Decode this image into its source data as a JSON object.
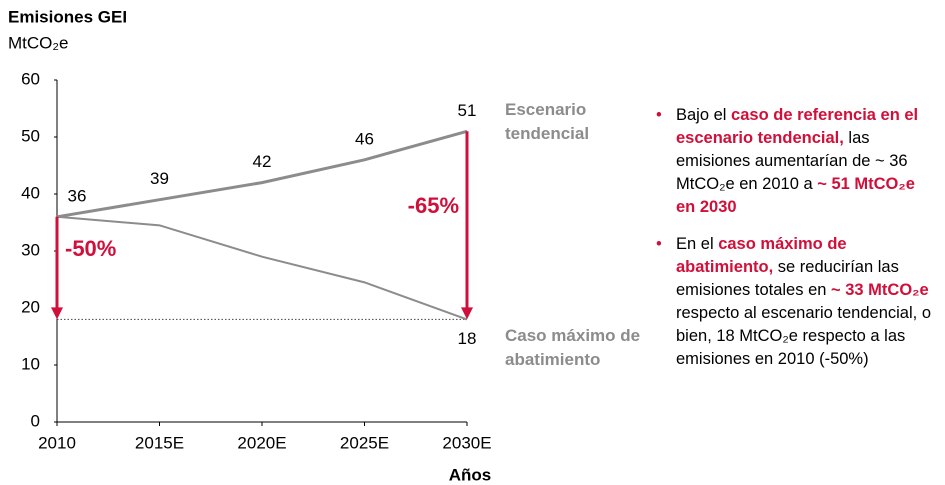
{
  "chart_data": {
    "type": "line",
    "title": "Emisiones GEI",
    "subtitle": "MtCO₂e",
    "x_label": "Años",
    "categories": [
      "2010",
      "2015E",
      "2020E",
      "2025E",
      "2030E"
    ],
    "series": [
      {
        "name": "Escenario tendencial",
        "color": "#8c8c8c",
        "values": [
          36,
          39,
          42,
          46,
          51
        ]
      },
      {
        "name": "Caso máximo de abatimiento",
        "color": "#8c8c8c",
        "values": [
          36,
          34.5,
          29,
          24.5,
          18
        ],
        "value_labels": [
          null,
          null,
          null,
          null,
          "18"
        ]
      }
    ],
    "ylim": [
      0,
      60
    ],
    "yticks": [
      0,
      10,
      20,
      30,
      40,
      50,
      60
    ],
    "reference_line": 18,
    "annotations": [
      {
        "text": "-50%",
        "category": 0,
        "from": 36,
        "to": 18,
        "color": "#d0103a"
      },
      {
        "text": "-65%",
        "category": 4,
        "from": 51,
        "to": 18,
        "color": "#d0103a"
      }
    ]
  },
  "notes": [
    [
      {
        "text": "Bajo el",
        "bold": false
      },
      {
        "text": "caso de referencia en el escenario tendencial,",
        "bold": true
      },
      {
        "text": "las emisiones aumentarían de ~ 36 MtCO₂e en 2010 a",
        "bold": false
      },
      {
        "text": "~ 51 MtCO₂e en 2030",
        "bold": true
      }
    ],
    [
      {
        "text": "En el",
        "bold": false
      },
      {
        "text": "caso máximo de abatimiento,",
        "bold": true
      },
      {
        "text": "se reducirían las emisiones totales en",
        "bold": false
      },
      {
        "text": "~ 33 MtCO₂e",
        "bold": true
      },
      {
        "text": "respecto al escenario tendencial, o bien, 18 MtCO₂e respecto a las emisiones en 2010 (-50%)",
        "bold": false
      }
    ]
  ]
}
